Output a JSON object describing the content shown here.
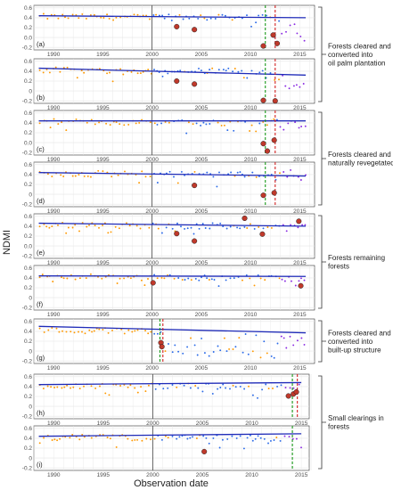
{
  "chart_data": {
    "type": "scatter",
    "ylabel": "NDMI",
    "xlabel": "Observation date",
    "yticks": [
      -0.2,
      0.0,
      0.2,
      0.4,
      0.6
    ],
    "yticks_alt": [
      -0.2,
      0,
      0.2,
      0.4,
      0.6
    ],
    "xticks": [
      1990,
      1995,
      2000,
      2005,
      2010,
      2015
    ],
    "colors": {
      "early": "#ff9900",
      "mid": "#2a6ae8",
      "late": "#8a2be2",
      "trend": "#1f2bb8",
      "break_green": "#1a9a1a",
      "break_red": "#d22222",
      "grid": "#e6e6e6",
      "highlight": "#c0392b"
    },
    "panels": [
      {
        "label": "(a)",
        "xlim": [
          1988,
          2016.5
        ],
        "ylim": [
          -0.25,
          0.65
        ],
        "trend": [
          [
            1988.5,
            0.44
          ],
          [
            2015.6,
            0.4
          ]
        ],
        "vline": 2000,
        "breaks": [
          {
            "x": 2011.5,
            "color": "green"
          },
          {
            "x": 2012.5,
            "color": "red"
          }
        ],
        "outliers": [
          [
            2002.5,
            0.22
          ],
          [
            2004.3,
            0.16
          ],
          [
            2011.3,
            -0.17
          ],
          [
            2012.3,
            0.05
          ],
          [
            2012.7,
            -0.12
          ]
        ],
        "regime": "drop"
      },
      {
        "label": "(b)",
        "xlim": [
          1988,
          2016.5
        ],
        "ylim": [
          -0.25,
          0.65
        ],
        "trend": [
          [
            1988.5,
            0.46
          ],
          [
            2015.6,
            0.32
          ]
        ],
        "vline": 2000,
        "breaks": [
          {
            "x": 2011.5,
            "color": "green"
          },
          {
            "x": 2012.5,
            "color": "red"
          }
        ],
        "outliers": [
          [
            2002.5,
            0.2
          ],
          [
            2004.3,
            0.14
          ],
          [
            2011.3,
            -0.19
          ],
          [
            2012.5,
            -0.2
          ]
        ],
        "regime": "drop"
      },
      {
        "label": "(c)",
        "xlim": [
          1988,
          2016.5
        ],
        "ylim": [
          -0.25,
          0.65
        ],
        "trend": [
          [
            1988.5,
            0.44
          ],
          [
            2015.6,
            0.44
          ]
        ],
        "vline": 2000,
        "breaks": [
          {
            "x": 2011.5,
            "color": "green"
          },
          {
            "x": 2012.5,
            "color": "red"
          }
        ],
        "outliers": [
          [
            2011.3,
            -0.02
          ],
          [
            2011.7,
            -0.17
          ],
          [
            2012.4,
            0.05
          ]
        ],
        "regime": "recover"
      },
      {
        "label": "(d)",
        "xlim": [
          1988,
          2016.5
        ],
        "ylim": [
          -0.25,
          0.65
        ],
        "trend": [
          [
            1988.5,
            0.44
          ],
          [
            2015.6,
            0.37
          ]
        ],
        "vline": 2000,
        "breaks": [
          {
            "x": 2011.5,
            "color": "green"
          },
          {
            "x": 2012.5,
            "color": "red"
          }
        ],
        "outliers": [
          [
            2004.3,
            0.18
          ],
          [
            2011.3,
            -0.02
          ],
          [
            2012.4,
            0.03
          ]
        ],
        "regime": "recover"
      },
      {
        "label": "(e)",
        "xlim": [
          1988,
          2016.5
        ],
        "ylim": [
          -0.25,
          0.65
        ],
        "trend": [
          [
            1988.5,
            0.46
          ],
          [
            2015.6,
            0.4
          ]
        ],
        "vline": 2000,
        "breaks": [],
        "outliers": [
          [
            2002.5,
            0.25
          ],
          [
            2004.3,
            0.1
          ],
          [
            2009.4,
            0.56
          ],
          [
            2011.2,
            0.24
          ],
          [
            2014.9,
            0.5
          ]
        ],
        "regime": "stable"
      },
      {
        "label": "(f)",
        "xlim": [
          1988,
          2016.5
        ],
        "ylim": [
          -0.25,
          0.65
        ],
        "trend": [
          [
            1988.5,
            0.44
          ],
          [
            2015.6,
            0.43
          ]
        ],
        "vline": 2000,
        "breaks": [],
        "outliers": [
          [
            2000.1,
            0.3
          ],
          [
            2015.1,
            0.24
          ]
        ],
        "regime": "stable"
      },
      {
        "label": "(g)",
        "xlim": [
          1988,
          2016.5
        ],
        "ylim": [
          -0.25,
          0.65
        ],
        "trend": [
          [
            1988.5,
            0.5
          ],
          [
            2015.6,
            0.37
          ]
        ],
        "vline": 2000,
        "breaks": [
          {
            "x": 2000.8,
            "color": "green"
          },
          {
            "x": 2001.1,
            "color": "red"
          }
        ],
        "outliers": [
          [
            2000.9,
            0.17
          ],
          [
            2001.0,
            0.09
          ]
        ],
        "regime": "urban"
      },
      {
        "label": "(h)",
        "xlim": [
          1988,
          2015.8
        ],
        "ylim": [
          -0.25,
          0.65
        ],
        "trend": [
          [
            1988.5,
            0.44
          ],
          [
            2015.0,
            0.48
          ]
        ],
        "vline": 2000,
        "breaks": [
          {
            "x": 2014.1,
            "color": "green"
          },
          {
            "x": 2014.6,
            "color": "red"
          }
        ],
        "outliers": [
          [
            2013.7,
            0.21
          ],
          [
            2014.2,
            0.25
          ],
          [
            2014.5,
            0.29
          ]
        ],
        "regime": "clearing"
      },
      {
        "label": "(i)",
        "xlim": [
          1988,
          2015.8
        ],
        "ylim": [
          -0.25,
          0.65
        ],
        "trend": [
          [
            1988.5,
            0.44
          ],
          [
            2015.0,
            0.49
          ]
        ],
        "vline": 2000,
        "breaks": [
          {
            "x": 2014.1,
            "color": "green"
          }
        ],
        "outliers": [
          [
            2005.2,
            0.13
          ]
        ],
        "regime": "clearing"
      }
    ],
    "annotations": [
      {
        "text": "Forests cleared and\nconverted into\noil palm plantation",
        "panels": [
          0,
          1
        ]
      },
      {
        "text": "Forests cleared and\nnaturally revegetated",
        "panels": [
          2,
          3
        ]
      },
      {
        "text": "Forests remaining\nforests",
        "panels": [
          4,
          5
        ]
      },
      {
        "text": "Forests cleared and\nconverted into\nbuilt-up structure",
        "panels": [
          6
        ]
      },
      {
        "text": "Small clearings in\nforests",
        "panels": [
          7,
          8
        ]
      }
    ]
  }
}
